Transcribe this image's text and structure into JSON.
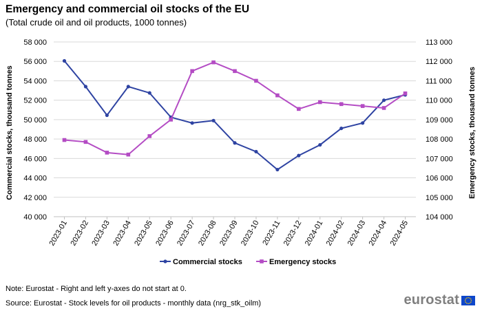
{
  "header": {
    "title": "Emergency and commercial oil stocks of the EU",
    "subtitle": "(Total crude oil and oil products, 1000 tonnes)"
  },
  "footer": {
    "note": "Note: Eurostat - Right and left y-axes do not start at 0.",
    "source": "Source: Eurostat - Stock levels for oil products - monthly data (nrg_stk_oilm)",
    "logo_text": "eurostat"
  },
  "colors": {
    "commercial": "#2e43a2",
    "emergency": "#b44cc4",
    "grid": "#d9d9d9",
    "flag_blue": "#0e47cb",
    "flag_star": "#ffcc00"
  },
  "chart_data": {
    "type": "line",
    "categories": [
      "2023-01",
      "2023-02",
      "2023-03",
      "2023-04",
      "2023-05",
      "2023-06",
      "2023-07",
      "2023-08",
      "2023-09",
      "2023-10",
      "2023-11",
      "2023-12",
      "2024-01",
      "2024-02",
      "2024-03",
      "2024-04",
      "2024-05"
    ],
    "ylabel_left": "Commercial stocks, thousand tonnes",
    "ylabel_right": "Emergency stocks,  thousand tonnes",
    "ylim_left": [
      40000,
      58000
    ],
    "ylim_right": [
      104000,
      113000
    ],
    "yticks_left": [
      "40 000",
      "42 000",
      "44 000",
      "46 000",
      "48 000",
      "50 000",
      "52 000",
      "54 000",
      "56 000",
      "58 000"
    ],
    "yticks_right": [
      "104 000",
      "105 000",
      "106 000",
      "107 000",
      "108 000",
      "109 000",
      "110 000",
      "111 000",
      "112 000",
      "113 000"
    ],
    "grid": true,
    "legend_position": "bottom",
    "series": [
      {
        "name": "Commercial stocks",
        "axis": "left",
        "marker": "circle",
        "values": [
          56050,
          53400,
          50450,
          53400,
          52750,
          50250,
          49650,
          49900,
          47600,
          46700,
          44850,
          46300,
          47400,
          49100,
          49650,
          52000,
          52550
        ]
      },
      {
        "name": "Emergency stocks",
        "axis": "right",
        "marker": "square",
        "values": [
          107950,
          107850,
          107300,
          107200,
          108150,
          109000,
          111500,
          111950,
          111500,
          111000,
          110250,
          109550,
          109900,
          109800,
          109700,
          109600,
          110350
        ]
      }
    ]
  }
}
